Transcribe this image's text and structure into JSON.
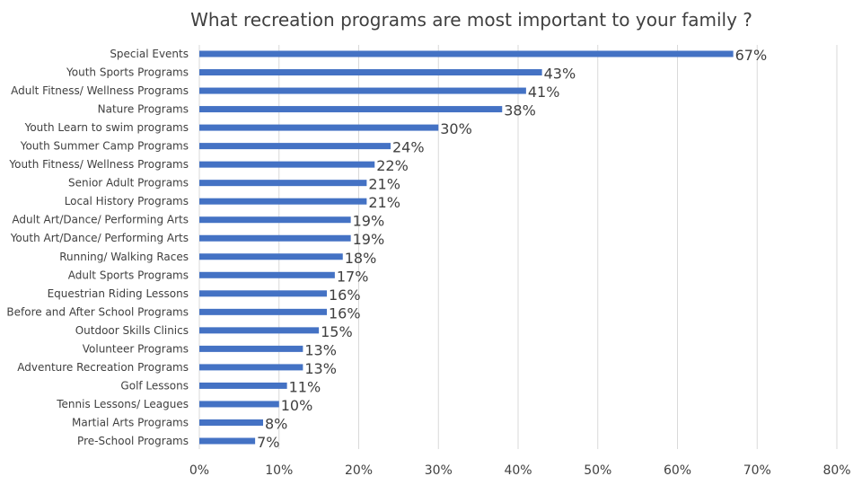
{
  "chart_data": {
    "type": "bar",
    "orientation": "horizontal",
    "title": "What recreation programs are most important to your family ?",
    "categories": [
      "Special Events",
      "Youth Sports Programs",
      "Adult Fitness/ Wellness Programs",
      "Nature Programs",
      "Youth Learn to swim programs",
      "Youth Summer Camp Programs",
      "Youth Fitness/ Wellness Programs",
      "Senior Adult Programs",
      "Local History Programs",
      "Adult Art/Dance/ Performing Arts",
      "Youth  Art/Dance/ Performing Arts",
      "Running/ Walking Races",
      "Adult Sports Programs",
      "Equestrian Riding Lessons",
      "Before and After School Programs",
      "Outdoor Skills Clinics",
      "Volunteer Programs",
      "Adventure Recreation Programs",
      "Golf Lessons",
      "Tennis Lessons/ Leagues",
      "Martial Arts Programs",
      "Pre-School Programs"
    ],
    "values": [
      67,
      43,
      41,
      38,
      30,
      24,
      22,
      21,
      21,
      19,
      19,
      18,
      17,
      16,
      16,
      15,
      13,
      13,
      11,
      10,
      8,
      7
    ],
    "value_labels": [
      "67%",
      "43%",
      "41%",
      "38%",
      "30%",
      "24%",
      "22%",
      "21%",
      "21%",
      "19%",
      "19%",
      "18%",
      "17%",
      "16%",
      "16%",
      "15%",
      "13%",
      "13%",
      "11%",
      "10%",
      "8%",
      "7%"
    ],
    "xlim": [
      0,
      80
    ],
    "xticks": [
      "0%",
      "10%",
      "20%",
      "30%",
      "40%",
      "50%",
      "60%",
      "70%",
      "80%"
    ],
    "xlabel": "",
    "ylabel": "",
    "grid": true,
    "legend": "none",
    "bar_color": "#4472C4"
  }
}
